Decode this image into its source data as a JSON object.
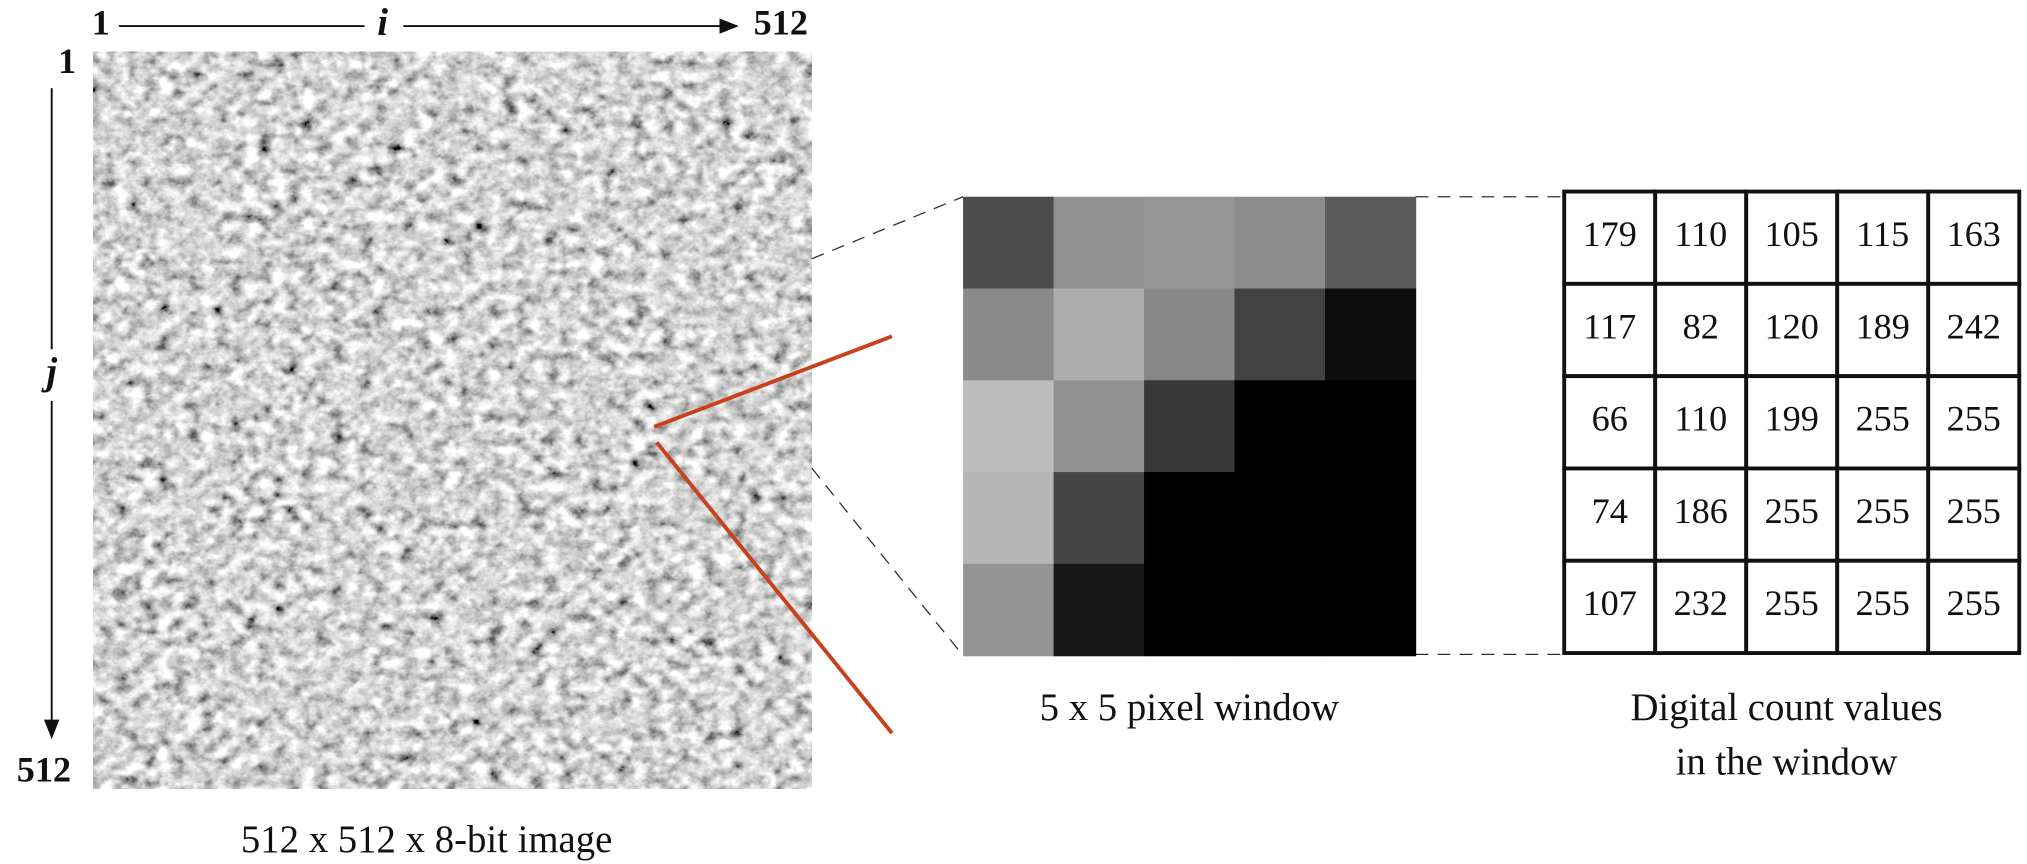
{
  "image": {
    "i_start": 1,
    "i_label": "i",
    "i_end": 512,
    "j_start": 1,
    "j_label": "j",
    "j_end": 512,
    "caption": "512 x 512 x 8-bit image"
  },
  "window": {
    "caption": "5 x 5 pixel window"
  },
  "table": {
    "rows": [
      [
        179,
        110,
        105,
        115,
        163
      ],
      [
        117,
        82,
        120,
        189,
        242
      ],
      [
        66,
        110,
        199,
        255,
        255
      ],
      [
        74,
        186,
        255,
        255,
        255
      ],
      [
        107,
        232,
        255,
        255,
        255
      ]
    ],
    "caption": [
      "Digital count values",
      "in the window"
    ]
  }
}
